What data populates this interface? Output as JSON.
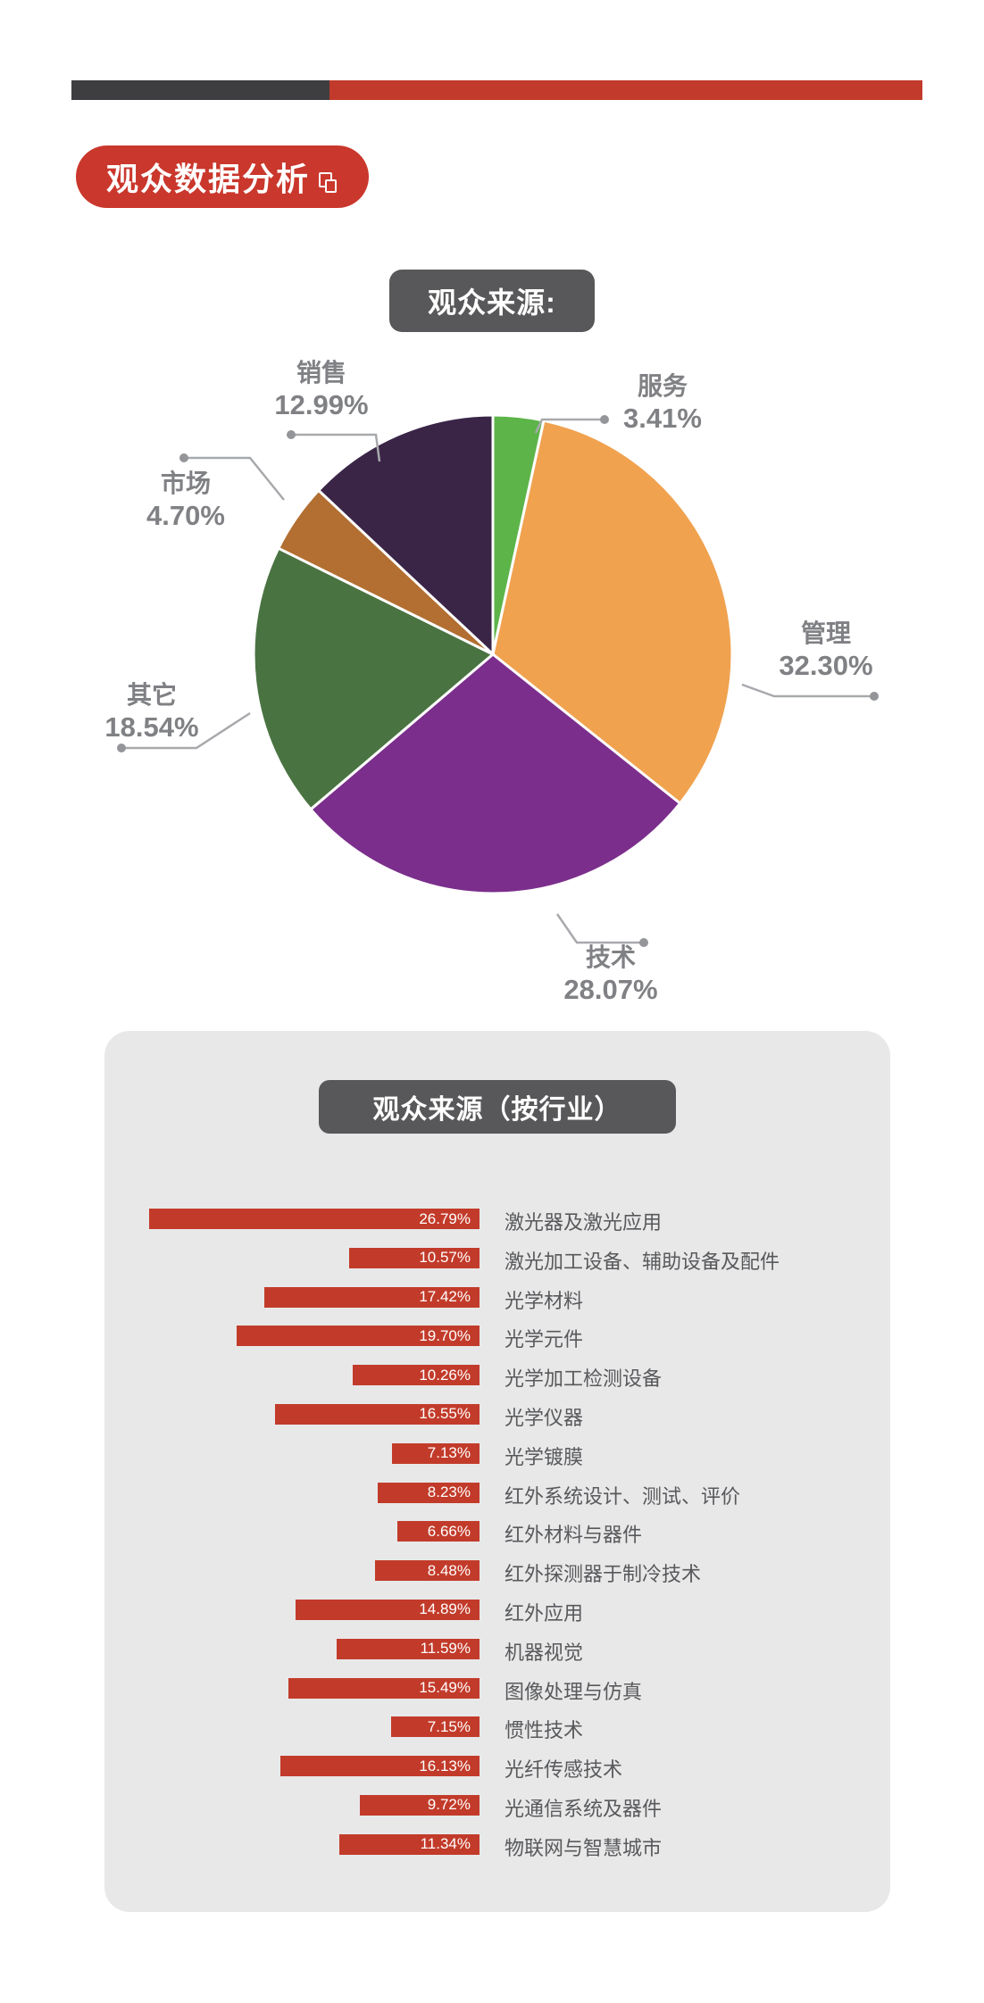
{
  "top_bar": {
    "dark_color": "#3e3e40",
    "red_color": "#c23a2c"
  },
  "title_badge": {
    "label": "观众数据分析",
    "icon": "copy-icon",
    "bg": "#ca372c"
  },
  "pie_section": {
    "badge": {
      "label": "观众来源:",
      "bg": "#58585a"
    },
    "leader_line_color": "#a7a9ac",
    "leader_dot_color": "#939598",
    "slices": [
      {
        "id": "fuwu",
        "label": "服务",
        "value": 3.41,
        "pct_text": "3.41%",
        "color": "#5db449"
      },
      {
        "id": "guanli",
        "label": "管理",
        "value": 32.3,
        "pct_text": "32.30%",
        "color": "#f0a24f"
      },
      {
        "id": "jishu",
        "label": "技术",
        "value": 28.07,
        "pct_text": "28.07%",
        "color": "#7b2e8c"
      },
      {
        "id": "qita",
        "label": "其它",
        "value": 18.54,
        "pct_text": "18.54%",
        "color": "#4a7342"
      },
      {
        "id": "shichang",
        "label": "市场",
        "value": 4.7,
        "pct_text": "4.70%",
        "color": "#b26f31"
      },
      {
        "id": "xiaoshou",
        "label": "销售",
        "value": 12.99,
        "pct_text": "12.99%",
        "color": "#3a2547"
      }
    ]
  },
  "industry_section": {
    "badge": {
      "label": "观众来源（按行业）",
      "bg": "#58585a"
    },
    "panel_bg": "#e8e8e9",
    "bar_color": "#c23b2a",
    "rows": [
      {
        "label": "激光器及激光应用",
        "value": 26.79,
        "pct_text": "26.79%"
      },
      {
        "label": "激光加工设备、辅助设备及配件",
        "value": 10.57,
        "pct_text": "10.57%"
      },
      {
        "label": "光学材料",
        "value": 17.42,
        "pct_text": "17.42%"
      },
      {
        "label": "光学元件",
        "value": 19.7,
        "pct_text": "19.70%"
      },
      {
        "label": "光学加工检测设备",
        "value": 10.26,
        "pct_text": "10.26%"
      },
      {
        "label": "光学仪器",
        "value": 16.55,
        "pct_text": "16.55%"
      },
      {
        "label": "光学镀膜",
        "value": 7.13,
        "pct_text": "7.13%"
      },
      {
        "label": "红外系统设计、测试、评价",
        "value": 8.23,
        "pct_text": "8.23%"
      },
      {
        "label": "红外材料与器件",
        "value": 6.66,
        "pct_text": "6.66%"
      },
      {
        "label": "红外探测器于制冷技术",
        "value": 8.48,
        "pct_text": "8.48%"
      },
      {
        "label": "红外应用",
        "value": 14.89,
        "pct_text": "14.89%"
      },
      {
        "label": "机器视觉",
        "value": 11.59,
        "pct_text": "11.59%"
      },
      {
        "label": "图像处理与仿真",
        "value": 15.49,
        "pct_text": "15.49%"
      },
      {
        "label": "惯性技术",
        "value": 7.15,
        "pct_text": "7.15%"
      },
      {
        "label": "光纤传感技术",
        "value": 16.13,
        "pct_text": "16.13%"
      },
      {
        "label": "光通信系统及器件",
        "value": 9.72,
        "pct_text": "9.72%"
      },
      {
        "label": "物联网与智慧城市",
        "value": 11.34,
        "pct_text": "11.34%"
      }
    ]
  },
  "chart_data": [
    {
      "type": "pie",
      "title": "观众来源:",
      "labels": [
        "服务",
        "管理",
        "技术",
        "其它",
        "市场",
        "销售"
      ],
      "values": [
        3.41,
        32.3,
        28.07,
        18.54,
        4.7,
        12.99
      ],
      "colors": [
        "#5db449",
        "#f0a24f",
        "#7b2e8c",
        "#4a7342",
        "#b26f31",
        "#3a2547"
      ],
      "start_angle_deg_from_top": 0,
      "direction": "clockwise",
      "legend_position": "outside-callouts"
    },
    {
      "type": "bar",
      "orientation": "horizontal",
      "title": "观众来源（按行业）",
      "categories": [
        "激光器及激光应用",
        "激光加工设备、辅助设备及配件",
        "光学材料",
        "光学元件",
        "光学加工检测设备",
        "光学仪器",
        "光学镀膜",
        "红外系统设计、测试、评价",
        "红外材料与器件",
        "红外探测器于制冷技术",
        "红外应用",
        "机器视觉",
        "图像处理与仿真",
        "惯性技术",
        "光纤传感技术",
        "光通信系统及器件",
        "物联网与智慧城市"
      ],
      "values": [
        26.79,
        10.57,
        17.42,
        19.7,
        10.26,
        16.55,
        7.13,
        8.23,
        6.66,
        8.48,
        14.89,
        11.59,
        15.49,
        7.15,
        16.13,
        9.72,
        11.34
      ],
      "value_labels_inside_bar": true,
      "bars_right_aligned": true,
      "grid": false,
      "xlim": [
        0,
        27
      ]
    }
  ]
}
